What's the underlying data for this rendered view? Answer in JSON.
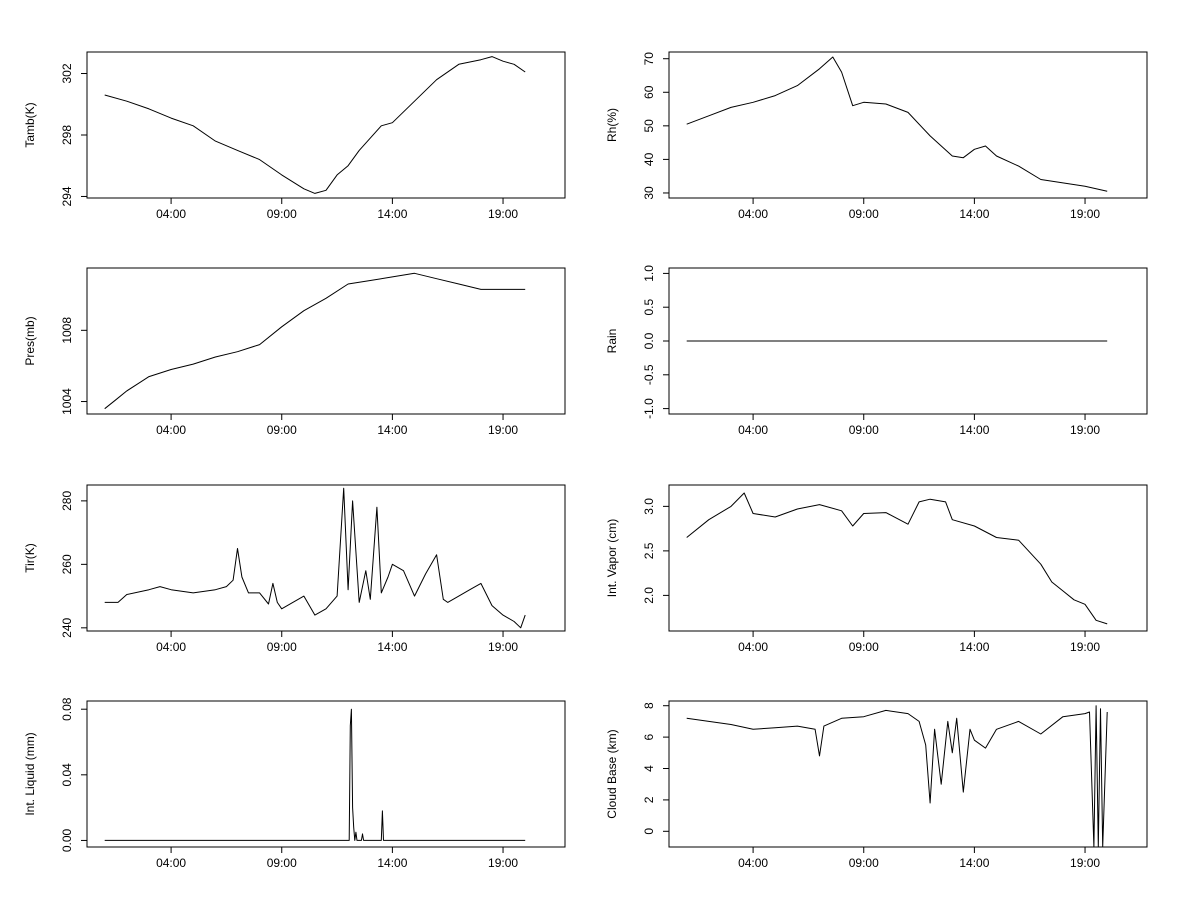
{
  "chart_data": [
    {
      "type": "line",
      "ylabel": "Tamb(K)",
      "x_ticks": [
        "04:00",
        "09:00",
        "14:00",
        "19:00"
      ],
      "y_ticks": [
        294,
        298,
        302
      ],
      "ylim": [
        293.9,
        303.4
      ],
      "x": [
        1.0,
        2.0,
        3.0,
        4.0,
        5.0,
        6.0,
        7.0,
        8.0,
        9.0,
        10.0,
        10.5,
        11.0,
        11.5,
        12.0,
        12.5,
        13.0,
        13.5,
        14.0,
        15.0,
        16.0,
        17.0,
        18.0,
        18.5,
        19.0,
        19.5,
        20.0
      ],
      "series": [
        {
          "name": "Tamb",
          "values": [
            300.6,
            300.2,
            299.7,
            299.1,
            298.6,
            297.6,
            297.0,
            296.4,
            295.4,
            294.5,
            294.2,
            294.4,
            295.4,
            296.0,
            297.0,
            297.8,
            298.6,
            298.8,
            300.2,
            301.6,
            302.6,
            302.9,
            303.1,
            302.8,
            302.6,
            302.1
          ]
        }
      ]
    },
    {
      "type": "line",
      "ylabel": "Rh(%)",
      "x_ticks": [
        "04:00",
        "09:00",
        "14:00",
        "19:00"
      ],
      "y_ticks": [
        30,
        40,
        50,
        60,
        70
      ],
      "ylim": [
        28.5,
        72
      ],
      "x": [
        1.0,
        2.0,
        3.0,
        4.0,
        5.0,
        6.0,
        7.0,
        7.6,
        8.0,
        8.5,
        9.0,
        10.0,
        11.0,
        12.0,
        13.0,
        13.5,
        14.0,
        14.5,
        15.0,
        16.0,
        17.0,
        18.0,
        19.0,
        20.0
      ],
      "series": [
        {
          "name": "Rh",
          "values": [
            50.5,
            53.0,
            55.5,
            57.0,
            59.0,
            62.0,
            67.0,
            70.5,
            66.0,
            56.0,
            57.0,
            56.5,
            54.0,
            47.0,
            41.0,
            40.5,
            43.0,
            44.0,
            41.0,
            38.0,
            34.0,
            33.0,
            32.0,
            30.5
          ]
        }
      ]
    },
    {
      "type": "line",
      "ylabel": "Pres(mb)",
      "x_ticks": [
        "04:00",
        "09:00",
        "14:00",
        "19:00"
      ],
      "y_ticks": [
        1004,
        1008
      ],
      "ylim": [
        1003.3,
        1011.5
      ],
      "x": [
        1.0,
        1.5,
        2.0,
        3.0,
        4.0,
        5.0,
        6.0,
        7.0,
        8.0,
        9.0,
        10.0,
        11.0,
        12.0,
        13.0,
        14.0,
        15.0,
        16.0,
        17.0,
        18.0,
        19.0,
        20.0
      ],
      "series": [
        {
          "name": "Pres",
          "values": [
            1003.6,
            1004.1,
            1004.6,
            1005.4,
            1005.8,
            1006.1,
            1006.5,
            1006.8,
            1007.2,
            1008.2,
            1009.1,
            1009.8,
            1010.6,
            1010.8,
            1011.0,
            1011.2,
            1010.9,
            1010.6,
            1010.3,
            1010.3,
            1010.3
          ]
        }
      ]
    },
    {
      "type": "line",
      "ylabel": "Rain",
      "x_ticks": [
        "04:00",
        "09:00",
        "14:00",
        "19:00"
      ],
      "y_ticks": [
        "-1.0",
        "-0.5",
        "0.0",
        "0.5",
        "1.0"
      ],
      "ylim": [
        -1.08,
        1.08
      ],
      "x": [
        1.0,
        20.0
      ],
      "series": [
        {
          "name": "Rain",
          "values": [
            0.0,
            0.0
          ]
        }
      ]
    },
    {
      "type": "line",
      "ylabel": "Tir(K)",
      "x_ticks": [
        "04:00",
        "09:00",
        "14:00",
        "19:00"
      ],
      "y_ticks": [
        240,
        260,
        280
      ],
      "ylim": [
        239,
        285
      ],
      "x": [
        1.0,
        1.6,
        2.0,
        3.0,
        3.5,
        4.0,
        5.0,
        6.0,
        6.5,
        6.8,
        7.0,
        7.2,
        7.5,
        8.0,
        8.4,
        8.6,
        8.8,
        9.0,
        10.0,
        10.5,
        11.0,
        11.5,
        11.8,
        12.0,
        12.2,
        12.5,
        12.8,
        13.0,
        13.3,
        13.5,
        13.8,
        14.0,
        14.5,
        15.0,
        15.5,
        16.0,
        16.3,
        16.5,
        17.0,
        17.5,
        18.0,
        18.5,
        19.0,
        19.5,
        19.8,
        20.0
      ],
      "series": [
        {
          "name": "Tir",
          "values": [
            248.0,
            248.0,
            250.5,
            252.0,
            253.0,
            252.0,
            251.0,
            252.0,
            253.0,
            255.0,
            265.0,
            256.0,
            251.0,
            251.0,
            247.5,
            254.0,
            248.0,
            246.0,
            250.0,
            244.0,
            246.0,
            250.0,
            284.0,
            252.0,
            280.0,
            248.0,
            258.0,
            249.0,
            278.0,
            251.0,
            256.0,
            260.0,
            258.0,
            250.0,
            257.0,
            263.0,
            249.0,
            248.0,
            250.0,
            252.0,
            254.0,
            247.0,
            244.0,
            242.0,
            240.0,
            244.0
          ]
        }
      ]
    },
    {
      "type": "line",
      "ylabel": "Int. Vapor (cm)",
      "x_ticks": [
        "04:00",
        "09:00",
        "14:00",
        "19:00"
      ],
      "y_ticks": [
        "2.0",
        "2.5",
        "3.0"
      ],
      "ylim": [
        1.6,
        3.24
      ],
      "x": [
        1.0,
        2.0,
        3.0,
        3.6,
        4.0,
        5.0,
        6.0,
        7.0,
        8.0,
        8.5,
        9.0,
        10.0,
        11.0,
        11.5,
        12.0,
        12.7,
        13.0,
        14.0,
        15.0,
        16.0,
        17.0,
        17.5,
        18.0,
        18.5,
        19.0,
        19.5,
        20.0
      ],
      "series": [
        {
          "name": "Int. Vapor",
          "values": [
            2.65,
            2.85,
            3.0,
            3.15,
            2.92,
            2.88,
            2.97,
            3.02,
            2.95,
            2.78,
            2.92,
            2.93,
            2.8,
            3.05,
            3.08,
            3.05,
            2.85,
            2.78,
            2.65,
            2.62,
            2.35,
            2.15,
            2.05,
            1.95,
            1.9,
            1.72,
            1.68
          ]
        }
      ]
    },
    {
      "type": "line",
      "ylabel": "Int. Liquid (mm)",
      "x_ticks": [
        "04:00",
        "09:00",
        "14:00",
        "19:00"
      ],
      "y_ticks": [
        "0.00",
        "0.04",
        "0.08"
      ],
      "ylim": [
        -0.004,
        0.085
      ],
      "x": [
        1.0,
        12.05,
        12.1,
        12.15,
        12.2,
        12.25,
        12.3,
        12.35,
        12.4,
        12.6,
        12.65,
        12.7,
        13.5,
        13.55,
        13.6,
        20.0
      ],
      "series": [
        {
          "name": "Int. Liquid",
          "values": [
            0.0,
            0.0,
            0.07,
            0.08,
            0.02,
            0.008,
            0.0,
            0.005,
            0.0,
            0.0,
            0.004,
            0.0,
            0.0,
            0.018,
            0.0,
            0.0
          ]
        }
      ]
    },
    {
      "type": "line",
      "ylabel": "Cloud Base (km)",
      "x_ticks": [
        "04:00",
        "09:00",
        "14:00",
        "19:00"
      ],
      "y_ticks": [
        0,
        2,
        4,
        6,
        8
      ],
      "ylim": [
        -1.0,
        8.3
      ],
      "x": [
        1.0,
        2.0,
        3.0,
        4.0,
        5.0,
        6.0,
        6.8,
        7.0,
        7.2,
        8.0,
        9.0,
        10.0,
        11.0,
        11.5,
        11.8,
        12.0,
        12.2,
        12.5,
        12.8,
        13.0,
        13.2,
        13.5,
        13.8,
        14.0,
        14.5,
        15.0,
        16.0,
        17.0,
        18.0,
        19.0,
        19.2,
        19.4,
        19.5,
        19.6,
        19.7,
        19.8,
        20.0
      ],
      "series": [
        {
          "name": "Cloud Base",
          "values": [
            7.2,
            7.0,
            6.8,
            6.5,
            6.6,
            6.7,
            6.5,
            4.8,
            6.7,
            7.2,
            7.3,
            7.7,
            7.5,
            7.0,
            5.5,
            1.8,
            6.5,
            3.0,
            7.0,
            5.0,
            7.2,
            2.5,
            6.5,
            5.8,
            5.3,
            6.5,
            7.0,
            6.2,
            7.3,
            7.5,
            7.6,
            -1.0,
            8.0,
            -1.0,
            7.8,
            -1.0,
            7.6
          ]
        }
      ]
    }
  ]
}
